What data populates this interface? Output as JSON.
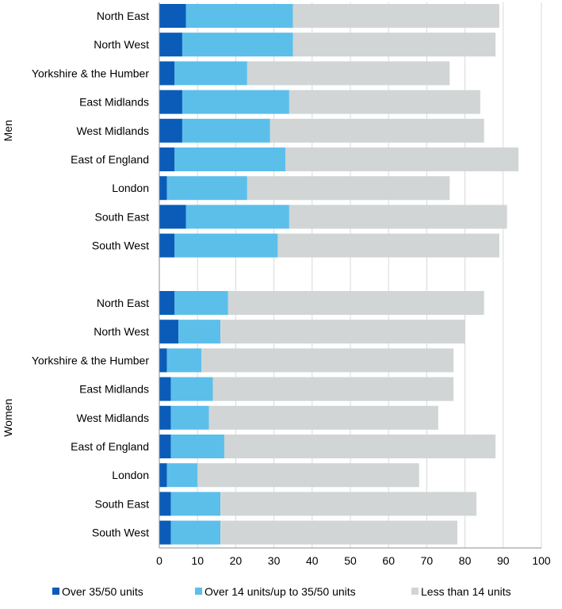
{
  "chart_data": {
    "type": "bar",
    "orientation": "horizontal",
    "stacked": true,
    "xlim": [
      0,
      100
    ],
    "xticks": [
      "0",
      "10",
      "20",
      "30",
      "40",
      "50",
      "60",
      "70",
      "80",
      "90",
      "100"
    ],
    "grid": "vertical",
    "legend_position": "bottom",
    "series": [
      {
        "name": "Over 35/50 units",
        "color": "#0a5cb8"
      },
      {
        "name": "Over 14 units/up to 35/50 units",
        "color": "#5bbfea"
      },
      {
        "name": "Less than 14 units",
        "color": "#d1d5d5"
      }
    ],
    "groups": [
      {
        "label": "Men",
        "categories": [
          "North East",
          "North West",
          "Yorkshire & the Humber",
          "East Midlands",
          "West Midlands",
          "East of England",
          "London",
          "South East",
          "South West"
        ],
        "values": [
          [
            7,
            28,
            54
          ],
          [
            6,
            29,
            53
          ],
          [
            4,
            19,
            53
          ],
          [
            6,
            28,
            50
          ],
          [
            6,
            23,
            56
          ],
          [
            4,
            29,
            61
          ],
          [
            2,
            21,
            53
          ],
          [
            7,
            27,
            57
          ],
          [
            4,
            27,
            58
          ]
        ]
      },
      {
        "label": "Women",
        "categories": [
          "North East",
          "North West",
          "Yorkshire & the Humber",
          "East Midlands",
          "West Midlands",
          "East of England",
          "London",
          "South East",
          "South West"
        ],
        "values": [
          [
            4,
            14,
            67
          ],
          [
            5,
            11,
            64
          ],
          [
            2,
            9,
            66
          ],
          [
            3,
            11,
            63
          ],
          [
            3,
            10,
            60
          ],
          [
            3,
            14,
            71
          ],
          [
            2,
            8,
            58
          ],
          [
            3,
            13,
            67
          ],
          [
            3,
            13,
            62
          ]
        ]
      }
    ]
  }
}
